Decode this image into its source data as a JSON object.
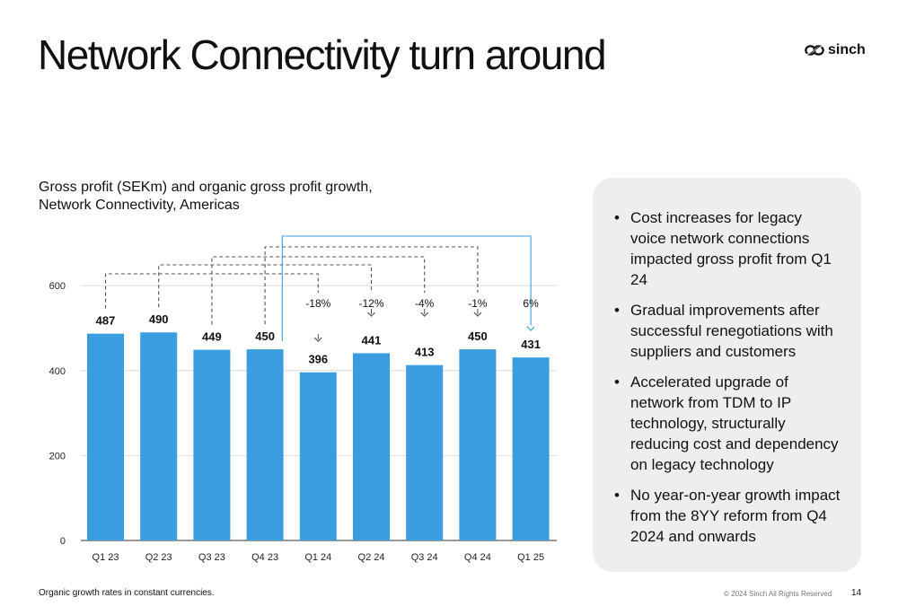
{
  "title": "Network Connectivity turn around",
  "logo": {
    "text": "sinch",
    "color": "#111111"
  },
  "chart_title": "Gross profit (SEKm) and organic gross profit growth, Network Connectivity, Americas",
  "chart_data": {
    "type": "bar",
    "categories": [
      "Q1 23",
      "Q2 23",
      "Q3 23",
      "Q4 23",
      "Q1 24",
      "Q2 24",
      "Q3 24",
      "Q4 24",
      "Q1 25"
    ],
    "values": [
      487,
      490,
      449,
      450,
      396,
      441,
      413,
      450,
      431
    ],
    "data_labels": [
      "487",
      "490",
      "449",
      "450",
      "396",
      "441",
      "413",
      "450",
      "431"
    ],
    "ylim": [
      0,
      700
    ],
    "yticks": [
      0,
      200,
      400,
      600
    ],
    "ytick_labels": [
      "0",
      "200",
      "400",
      "600"
    ],
    "bar_color": "#3a9de0",
    "highlight_color": "#3a9de0",
    "grid": true,
    "growth_annotations": [
      {
        "from": "Q1 23",
        "to": "Q1 24",
        "label": "-18%",
        "highlight": false
      },
      {
        "from": "Q2 23",
        "to": "Q2 24",
        "label": "-12%",
        "highlight": false
      },
      {
        "from": "Q3 23",
        "to": "Q3 24",
        "label": "-4%",
        "highlight": false
      },
      {
        "from": "Q4 23",
        "to": "Q4 24",
        "label": "-1%",
        "highlight": false
      },
      {
        "from": "Q1 24",
        "to": "Q1 25",
        "label": "6%",
        "highlight": true
      }
    ]
  },
  "bullets": [
    "Cost increases for legacy voice network connections impacted gross profit from Q1 24",
    "Gradual improvements after successful renegotiations with suppliers and customers",
    "Accelerated upgrade of network from TDM to IP technology, structurally reducing cost and dependency on legacy technology",
    "No year-on-year growth impact from the 8YY reform from Q4 2024 and onwards"
  ],
  "bullet_symbol": "•",
  "footnote": "Organic growth rates in constant currencies.",
  "copyright": "© 2024 Sinch All Rights Reserved",
  "page_number": "14"
}
